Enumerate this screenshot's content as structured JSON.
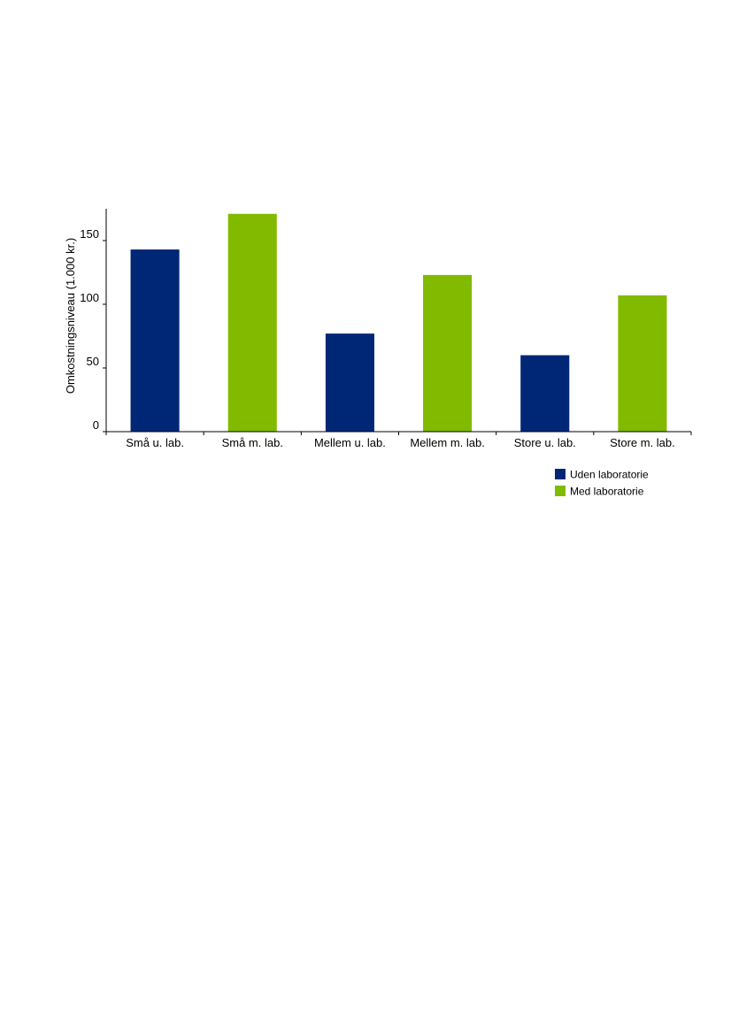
{
  "chart_data": {
    "type": "bar",
    "title": "",
    "xlabel": "",
    "ylabel": "Omkostningsniveau (1.000 kr.)",
    "ylim": [
      0,
      175
    ],
    "yticks": [
      0,
      50,
      100,
      150
    ],
    "categories": [
      "Små u. lab.",
      "Små m. lab.",
      "Mellem u. lab.",
      "Mellem m. lab.",
      "Store u. lab.",
      "Store m. lab."
    ],
    "values": [
      143,
      171,
      77,
      123,
      60,
      107
    ],
    "bar_series": [
      0,
      1,
      0,
      1,
      0,
      1
    ],
    "series": [
      {
        "name": "Uden laboratorie",
        "color": "#002776"
      },
      {
        "name": "Med laboratorie",
        "color": "#82BA00"
      }
    ],
    "grid": false,
    "legend_position": "bottom-right"
  }
}
